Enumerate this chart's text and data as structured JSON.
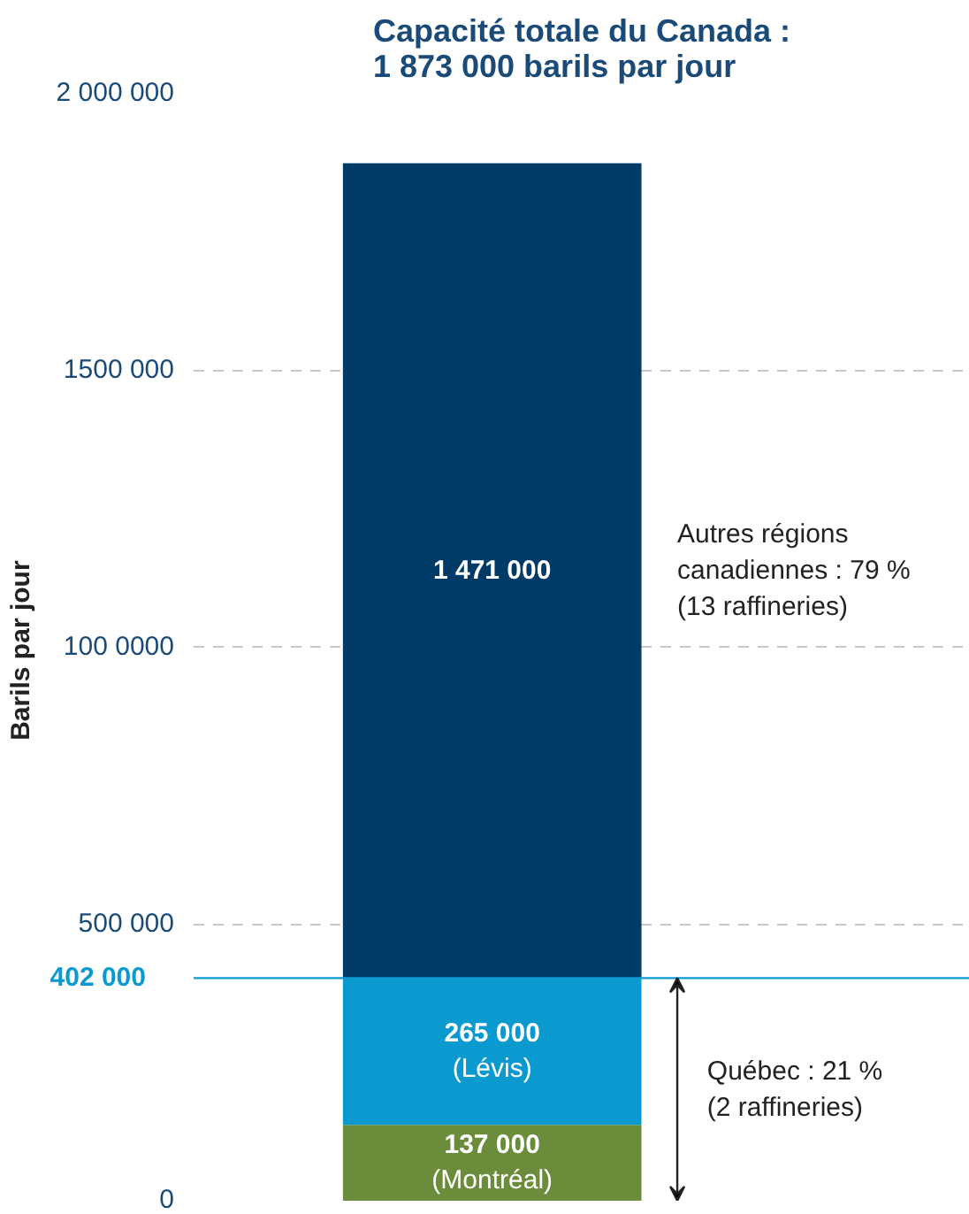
{
  "chart_data": {
    "type": "bar",
    "stacked": true,
    "title": "Capacité totale du Canada :\n1 873 000 barils par jour",
    "ylabel": "Barils  par jour",
    "categories": [
      null
    ],
    "series": [
      {
        "name": "(Montréal)",
        "color": "#6b8c3a",
        "values": [
          137000
        ],
        "value_labels": [
          "137 000"
        ]
      },
      {
        "name": "(Lévis)",
        "color": "#0a9ad0",
        "values": [
          265000
        ],
        "value_labels": [
          "265 000"
        ]
      },
      {
        "color": "#003b68",
        "values": [
          1471000
        ],
        "value_labels": [
          "1 471 000"
        ]
      }
    ],
    "ylim": [
      0,
      2000000
    ],
    "yticks": [
      0,
      {
        "value": 500000,
        "label": "500 000"
      },
      {
        "value": 1000000,
        "label": "100 0000"
      },
      {
        "value": 1500000,
        "label": "1500 000"
      },
      {
        "value": 2000000,
        "label": "2 000 000"
      }
    ],
    "grid": "y",
    "ref_lines": [
      {
        "axis": "y",
        "value": 402000,
        "label": "402 000",
        "color": "#0a9ad0"
      }
    ],
    "annotations": [
      "Autres régions\ncanadiennes : 79 %\n(13 raffineries)",
      "Québec : 21 %\n(2 raffineries)"
    ]
  }
}
